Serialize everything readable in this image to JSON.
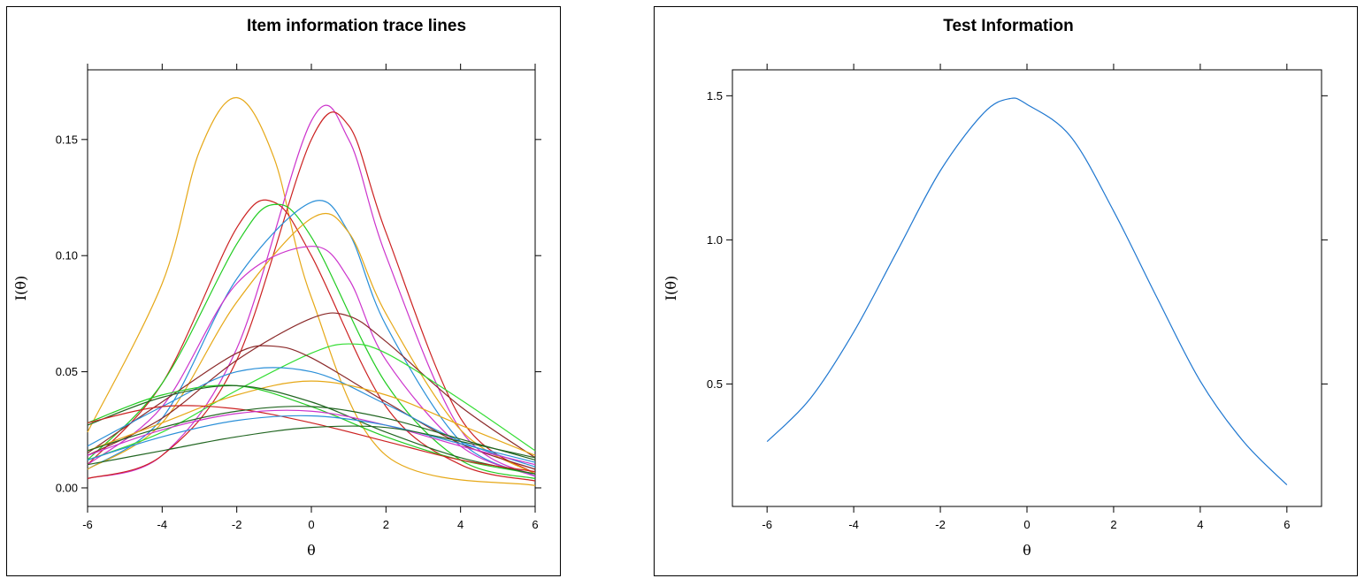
{
  "chart_data": [
    {
      "type": "line",
      "title": "Item information trace lines",
      "xlabel": "θ",
      "ylabel": "I(θ)",
      "xlim": [
        -6,
        6
      ],
      "ylim": [
        -0.008,
        0.18
      ],
      "xticks": [
        -6,
        -4,
        -2,
        0,
        2,
        4,
        6
      ],
      "xtick_labels": [
        "-6",
        "-4",
        "-2",
        "0",
        "2",
        "4",
        "6"
      ],
      "yticks": [
        0,
        0.05,
        0.1,
        0.15
      ],
      "ytick_labels": [
        "0.00",
        "0.05",
        "0.10",
        "0.15"
      ],
      "grid": false,
      "legend": "none",
      "series": [
        {
          "peak_x": -2.0,
          "peak_y": 0.168,
          "values_at_x": [
            [
              -6,
              0.024
            ],
            [
              -4,
              0.088
            ],
            [
              -3,
              0.145
            ],
            [
              -2,
              0.168
            ],
            [
              -1,
              0.142
            ],
            [
              0,
              0.082
            ],
            [
              2,
              0.014
            ],
            [
              6,
              0.001
            ]
          ],
          "color": "#E6A817"
        },
        {
          "peak_x": 0.3,
          "peak_y": 0.162,
          "values_at_x": [
            [
              -6,
              0.004
            ],
            [
              -4,
              0.014
            ],
            [
              -2,
              0.06
            ],
            [
              0,
              0.158
            ],
            [
              1,
              0.15
            ],
            [
              2,
              0.1
            ],
            [
              4,
              0.025
            ],
            [
              6,
              0.005
            ]
          ],
          "color": "#CC33CC"
        },
        {
          "peak_x": 0.5,
          "peak_y": 0.161,
          "values_at_x": [
            [
              -6,
              0.004
            ],
            [
              -4,
              0.014
            ],
            [
              -2,
              0.055
            ],
            [
              0,
              0.15
            ],
            [
              1,
              0.156
            ],
            [
              2,
              0.11
            ],
            [
              4,
              0.03
            ],
            [
              6,
              0.006
            ]
          ],
          "color": "#CC2222"
        },
        {
          "peak_x": -1.2,
          "peak_y": 0.123,
          "values_at_x": [
            [
              -6,
              0.01
            ],
            [
              -4,
              0.045
            ],
            [
              -2,
              0.112
            ],
            [
              -1,
              0.123
            ],
            [
              0,
              0.1
            ],
            [
              2,
              0.035
            ],
            [
              4,
              0.01
            ],
            [
              6,
              0.003
            ]
          ],
          "color": "#CC2222"
        },
        {
          "peak_x": -0.9,
          "peak_y": 0.122,
          "values_at_x": [
            [
              -6,
              0.012
            ],
            [
              -4,
              0.045
            ],
            [
              -2,
              0.105
            ],
            [
              -1,
              0.122
            ],
            [
              0,
              0.108
            ],
            [
              2,
              0.045
            ],
            [
              4,
              0.012
            ],
            [
              6,
              0.004
            ]
          ],
          "color": "#22CC22"
        },
        {
          "peak_x": -0.2,
          "peak_y": 0.123,
          "values_at_x": [
            [
              -6,
              0.008
            ],
            [
              -4,
              0.03
            ],
            [
              -2,
              0.09
            ],
            [
              0,
              0.123
            ],
            [
              1,
              0.11
            ],
            [
              2,
              0.07
            ],
            [
              4,
              0.02
            ],
            [
              6,
              0.005
            ]
          ],
          "color": "#2A8FD8"
        },
        {
          "peak_x": 0.1,
          "peak_y": 0.116,
          "values_at_x": [
            [
              -6,
              0.008
            ],
            [
              -4,
              0.028
            ],
            [
              -2,
              0.08
            ],
            [
              0,
              0.116
            ],
            [
              1,
              0.11
            ],
            [
              2,
              0.075
            ],
            [
              4,
              0.025
            ],
            [
              6,
              0.006
            ]
          ],
          "color": "#E6A817"
        },
        {
          "peak_x": -0.5,
          "peak_y": 0.107,
          "values_at_x": [
            [
              -6,
              0.01
            ],
            [
              -4,
              0.035
            ],
            [
              -2,
              0.088
            ],
            [
              0,
              0.104
            ],
            [
              1,
              0.09
            ],
            [
              2,
              0.055
            ],
            [
              4,
              0.018
            ],
            [
              6,
              0.005
            ]
          ],
          "color": "#CC33CC"
        },
        {
          "peak_x": 0.5,
          "peak_y": 0.075,
          "values_at_x": [
            [
              -6,
              0.014
            ],
            [
              -4,
              0.03
            ],
            [
              -2,
              0.055
            ],
            [
              0,
              0.073
            ],
            [
              1,
              0.074
            ],
            [
              2,
              0.063
            ],
            [
              4,
              0.035
            ],
            [
              6,
              0.013
            ]
          ],
          "color": "#8B2A2A"
        },
        {
          "peak_x": 0.8,
          "peak_y": 0.062,
          "values_at_x": [
            [
              -6,
              0.012
            ],
            [
              -4,
              0.024
            ],
            [
              -2,
              0.042
            ],
            [
              0,
              0.058
            ],
            [
              1,
              0.062
            ],
            [
              2,
              0.058
            ],
            [
              4,
              0.038
            ],
            [
              6,
              0.016
            ]
          ],
          "color": "#33DD33"
        },
        {
          "peak_x": -1.2,
          "peak_y": 0.061,
          "values_at_x": [
            [
              -6,
              0.015
            ],
            [
              -4,
              0.037
            ],
            [
              -2,
              0.058
            ],
            [
              -1,
              0.061
            ],
            [
              0,
              0.056
            ],
            [
              2,
              0.037
            ],
            [
              4,
              0.019
            ],
            [
              6,
              0.008
            ]
          ],
          "color": "#8B2A2A"
        },
        {
          "peak_x": -0.8,
          "peak_y": 0.052,
          "values_at_x": [
            [
              -6,
              0.018
            ],
            [
              -4,
              0.035
            ],
            [
              -2,
              0.05
            ],
            [
              0,
              0.05
            ],
            [
              2,
              0.036
            ],
            [
              4,
              0.02
            ],
            [
              6,
              0.009
            ]
          ],
          "color": "#2A8FD8"
        },
        {
          "peak_x": -0.4,
          "peak_y": 0.046,
          "values_at_x": [
            [
              -6,
              0.016
            ],
            [
              -4,
              0.028
            ],
            [
              -2,
              0.04
            ],
            [
              0,
              0.046
            ],
            [
              2,
              0.04
            ],
            [
              4,
              0.027
            ],
            [
              6,
              0.014
            ]
          ],
          "color": "#E6A817"
        },
        {
          "peak_x": -2.2,
          "peak_y": 0.044,
          "values_at_x": [
            [
              -6,
              0.028
            ],
            [
              -4,
              0.04
            ],
            [
              -2,
              0.044
            ],
            [
              0,
              0.035
            ],
            [
              2,
              0.022
            ],
            [
              4,
              0.012
            ],
            [
              6,
              0.006
            ]
          ],
          "color": "#22CC22"
        },
        {
          "peak_x": -1.8,
          "peak_y": 0.044,
          "values_at_x": [
            [
              -6,
              0.027
            ],
            [
              -4,
              0.039
            ],
            [
              -2,
              0.044
            ],
            [
              0,
              0.037
            ],
            [
              2,
              0.024
            ],
            [
              4,
              0.013
            ],
            [
              6,
              0.006
            ]
          ],
          "color": "#226622"
        },
        {
          "peak_x": -3.0,
          "peak_y": 0.036,
          "values_at_x": [
            [
              -6,
              0.028
            ],
            [
              -4,
              0.035
            ],
            [
              -2,
              0.034
            ],
            [
              0,
              0.028
            ],
            [
              2,
              0.02
            ],
            [
              4,
              0.012
            ],
            [
              6,
              0.007
            ]
          ],
          "color": "#CC2222"
        },
        {
          "peak_x": -0.7,
          "peak_y": 0.036,
          "values_at_x": [
            [
              -6,
              0.016
            ],
            [
              -4,
              0.026
            ],
            [
              -2,
              0.033
            ],
            [
              0,
              0.035
            ],
            [
              2,
              0.03
            ],
            [
              4,
              0.021
            ],
            [
              6,
              0.012
            ]
          ],
          "color": "#226622"
        },
        {
          "peak_x": -0.6,
          "peak_y": 0.034,
          "values_at_x": [
            [
              -6,
              0.014
            ],
            [
              -4,
              0.025
            ],
            [
              -2,
              0.032
            ],
            [
              0,
              0.033
            ],
            [
              2,
              0.027
            ],
            [
              4,
              0.018
            ],
            [
              6,
              0.01
            ]
          ],
          "color": "#CC33CC"
        },
        {
          "peak_x": -0.3,
          "peak_y": 0.031,
          "values_at_x": [
            [
              -6,
              0.012
            ],
            [
              -4,
              0.022
            ],
            [
              -2,
              0.029
            ],
            [
              0,
              0.031
            ],
            [
              2,
              0.027
            ],
            [
              4,
              0.019
            ],
            [
              6,
              0.011
            ]
          ],
          "color": "#2A8FD8"
        },
        {
          "peak_x": 0.5,
          "peak_y": 0.027,
          "values_at_x": [
            [
              -6,
              0.01
            ],
            [
              -4,
              0.016
            ],
            [
              -2,
              0.022
            ],
            [
              0,
              0.026
            ],
            [
              2,
              0.026
            ],
            [
              4,
              0.02
            ],
            [
              6,
              0.013
            ]
          ],
          "color": "#226622"
        }
      ]
    },
    {
      "type": "line",
      "title": "Test Information",
      "xlabel": "θ",
      "ylabel": "I(θ)",
      "xlim": [
        -6.8,
        6.8
      ],
      "ylim": [
        0.075,
        1.59
      ],
      "xticks": [
        -6,
        -4,
        -2,
        0,
        2,
        4,
        6
      ],
      "xtick_labels": [
        "-6",
        "-4",
        "-2",
        "0",
        "2",
        "4",
        "6"
      ],
      "yticks": [
        0.5,
        1.0,
        1.5
      ],
      "ytick_labels": [
        "0.5",
        "1.0",
        "1.5"
      ],
      "grid": false,
      "legend": "none",
      "series": [
        {
          "values_at_x": [
            [
              -6,
              0.3
            ],
            [
              -5,
              0.45
            ],
            [
              -4,
              0.68
            ],
            [
              -3,
              0.96
            ],
            [
              -2,
              1.24
            ],
            [
              -1,
              1.44
            ],
            [
              -0.4,
              1.49
            ],
            [
              0,
              1.47
            ],
            [
              1,
              1.36
            ],
            [
              2,
              1.1
            ],
            [
              3,
              0.8
            ],
            [
              4,
              0.51
            ],
            [
              5,
              0.3
            ],
            [
              6,
              0.15
            ]
          ],
          "color": "#1F77D0"
        }
      ]
    }
  ]
}
